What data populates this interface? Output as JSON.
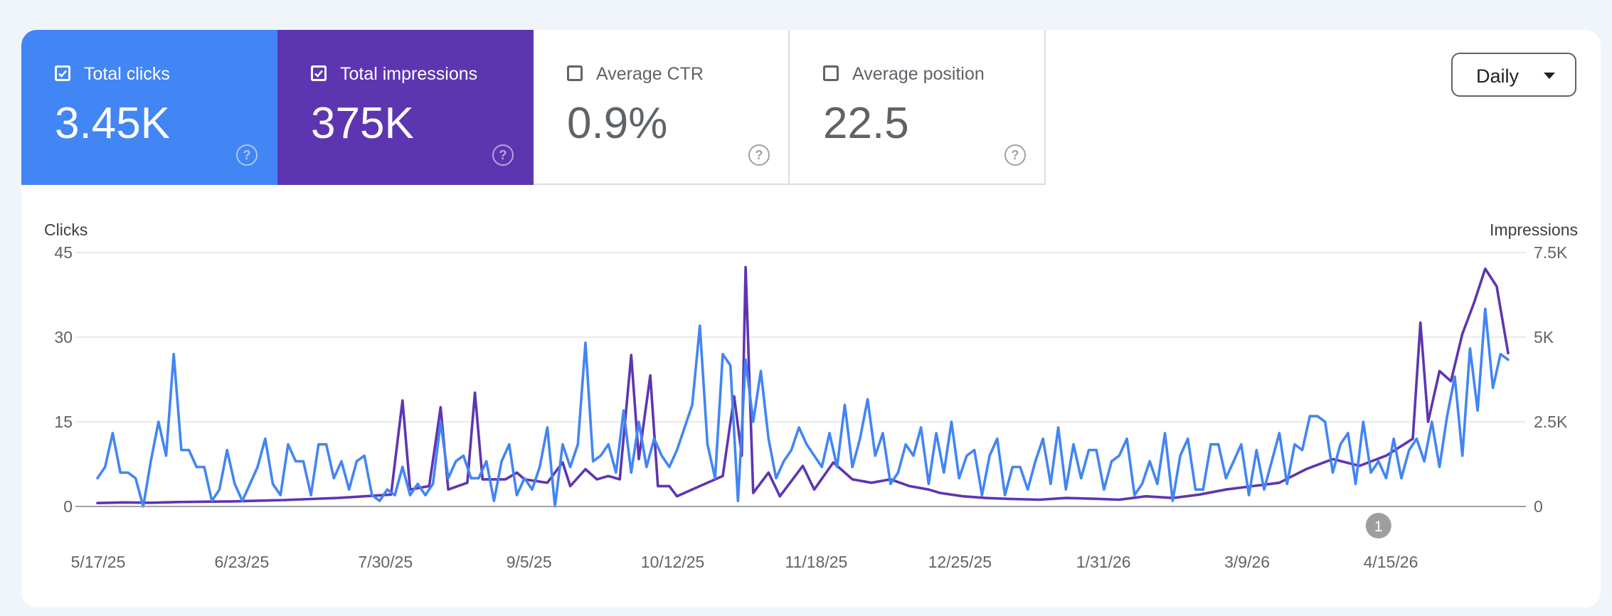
{
  "metrics": [
    {
      "label": "Total clicks",
      "value": "3.45K",
      "checked": true
    },
    {
      "label": "Total impressions",
      "value": "375K",
      "checked": true
    },
    {
      "label": "Average CTR",
      "value": "0.9%",
      "checked": false
    },
    {
      "label": "Average position",
      "value": "22.5",
      "checked": false
    }
  ],
  "granularity": {
    "label": "Daily"
  },
  "colors": {
    "clicks": "#4285f4",
    "impressions": "#5e35b1",
    "gridline": "#e8eaed",
    "baseline": "#9aa0a6"
  },
  "chart_data": {
    "type": "line",
    "xlabel": "",
    "left_axis": {
      "label": "Clicks",
      "ticks": [
        "0",
        "15",
        "30",
        "45"
      ],
      "range": [
        0,
        45
      ]
    },
    "right_axis": {
      "label": "Impressions",
      "ticks": [
        "0",
        "2.5K",
        "5K",
        "7.5K"
      ],
      "range": [
        0,
        7500
      ]
    },
    "x_tick_labels": [
      "5/17/25",
      "6/23/25",
      "7/30/25",
      "9/5/25",
      "10/12/25",
      "11/18/25",
      "12/25/25",
      "1/31/26",
      "3/9/26",
      "4/15/26"
    ],
    "x_range": [
      "2025-05-17",
      "2026-05-22"
    ],
    "annotation": {
      "label": "1",
      "date": "2026-04-18"
    },
    "grid": true,
    "series": [
      {
        "name": "Clicks",
        "axis": "left",
        "points": [
          [
            "2025-05-17",
            5
          ],
          [
            "2025-05-19",
            7
          ],
          [
            "2025-05-21",
            13
          ],
          [
            "2025-05-23",
            6
          ],
          [
            "2025-05-25",
            6
          ],
          [
            "2025-05-27",
            5
          ],
          [
            "2025-05-29",
            0
          ],
          [
            "2025-05-31",
            8
          ],
          [
            "2025-06-02",
            15
          ],
          [
            "2025-06-04",
            9
          ],
          [
            "2025-06-06",
            27
          ],
          [
            "2025-06-08",
            10
          ],
          [
            "2025-06-10",
            10
          ],
          [
            "2025-06-12",
            7
          ],
          [
            "2025-06-14",
            7
          ],
          [
            "2025-06-16",
            1
          ],
          [
            "2025-06-18",
            3
          ],
          [
            "2025-06-20",
            10
          ],
          [
            "2025-06-22",
            4
          ],
          [
            "2025-06-24",
            1
          ],
          [
            "2025-06-26",
            4
          ],
          [
            "2025-06-28",
            7
          ],
          [
            "2025-06-30",
            12
          ],
          [
            "2025-07-02",
            4
          ],
          [
            "2025-07-04",
            2
          ],
          [
            "2025-07-06",
            11
          ],
          [
            "2025-07-08",
            8
          ],
          [
            "2025-07-10",
            8
          ],
          [
            "2025-07-12",
            2
          ],
          [
            "2025-07-14",
            11
          ],
          [
            "2025-07-16",
            11
          ],
          [
            "2025-07-18",
            5
          ],
          [
            "2025-07-20",
            8
          ],
          [
            "2025-07-22",
            3
          ],
          [
            "2025-07-24",
            8
          ],
          [
            "2025-07-26",
            9
          ],
          [
            "2025-07-28",
            2
          ],
          [
            "2025-07-30",
            1
          ],
          [
            "2025-08-01",
            3
          ],
          [
            "2025-08-03",
            2
          ],
          [
            "2025-08-05",
            7
          ],
          [
            "2025-08-07",
            2
          ],
          [
            "2025-08-09",
            4
          ],
          [
            "2025-08-11",
            2
          ],
          [
            "2025-08-13",
            4
          ],
          [
            "2025-08-15",
            15
          ],
          [
            "2025-08-17",
            5
          ],
          [
            "2025-08-19",
            8
          ],
          [
            "2025-08-21",
            9
          ],
          [
            "2025-08-23",
            5
          ],
          [
            "2025-08-25",
            5
          ],
          [
            "2025-08-27",
            8
          ],
          [
            "2025-08-29",
            1
          ],
          [
            "2025-08-31",
            8
          ],
          [
            "2025-09-02",
            11
          ],
          [
            "2025-09-04",
            2
          ],
          [
            "2025-09-06",
            5
          ],
          [
            "2025-09-08",
            3
          ],
          [
            "2025-09-10",
            7
          ],
          [
            "2025-09-12",
            14
          ],
          [
            "2025-09-14",
            0
          ],
          [
            "2025-09-16",
            11
          ],
          [
            "2025-09-18",
            7
          ],
          [
            "2025-09-20",
            11
          ],
          [
            "2025-09-22",
            29
          ],
          [
            "2025-09-24",
            8
          ],
          [
            "2025-09-26",
            9
          ],
          [
            "2025-09-28",
            11
          ],
          [
            "2025-09-30",
            6
          ],
          [
            "2025-10-02",
            17
          ],
          [
            "2025-10-04",
            6
          ],
          [
            "2025-10-06",
            15
          ],
          [
            "2025-10-08",
            7
          ],
          [
            "2025-10-10",
            12
          ],
          [
            "2025-10-12",
            9
          ],
          [
            "2025-10-14",
            7
          ],
          [
            "2025-10-16",
            10
          ],
          [
            "2025-10-18",
            14
          ],
          [
            "2025-10-20",
            18
          ],
          [
            "2025-10-22",
            32
          ],
          [
            "2025-10-24",
            11
          ],
          [
            "2025-10-26",
            5
          ],
          [
            "2025-10-28",
            27
          ],
          [
            "2025-10-30",
            25
          ],
          [
            "2025-11-01",
            1
          ],
          [
            "2025-11-03",
            26
          ],
          [
            "2025-11-05",
            15
          ],
          [
            "2025-11-07",
            24
          ],
          [
            "2025-11-09",
            12
          ],
          [
            "2025-11-11",
            5
          ],
          [
            "2025-11-13",
            8
          ],
          [
            "2025-11-15",
            10
          ],
          [
            "2025-11-17",
            14
          ],
          [
            "2025-11-19",
            11
          ],
          [
            "2025-11-21",
            9
          ],
          [
            "2025-11-23",
            7
          ],
          [
            "2025-11-25",
            13
          ],
          [
            "2025-11-27",
            7
          ],
          [
            "2025-11-29",
            18
          ],
          [
            "2025-12-01",
            7
          ],
          [
            "2025-12-03",
            12
          ],
          [
            "2025-12-05",
            19
          ],
          [
            "2025-12-07",
            9
          ],
          [
            "2025-12-09",
            13
          ],
          [
            "2025-12-11",
            4
          ],
          [
            "2025-12-13",
            6
          ],
          [
            "2025-12-15",
            11
          ],
          [
            "2025-12-17",
            9
          ],
          [
            "2025-12-19",
            14
          ],
          [
            "2025-12-21",
            4
          ],
          [
            "2025-12-23",
            13
          ],
          [
            "2025-12-25",
            6
          ],
          [
            "2025-12-27",
            15
          ],
          [
            "2025-12-29",
            5
          ],
          [
            "2025-12-31",
            9
          ],
          [
            "2026-01-02",
            10
          ],
          [
            "2026-01-04",
            2
          ],
          [
            "2026-01-06",
            9
          ],
          [
            "2026-01-08",
            12
          ],
          [
            "2026-01-10",
            2
          ],
          [
            "2026-01-12",
            7
          ],
          [
            "2026-01-14",
            7
          ],
          [
            "2026-01-16",
            3
          ],
          [
            "2026-01-18",
            8
          ],
          [
            "2026-01-20",
            12
          ],
          [
            "2026-01-22",
            4
          ],
          [
            "2026-01-24",
            14
          ],
          [
            "2026-01-26",
            3
          ],
          [
            "2026-01-28",
            11
          ],
          [
            "2026-01-30",
            5
          ],
          [
            "2026-02-01",
            10
          ],
          [
            "2026-02-03",
            10
          ],
          [
            "2026-02-05",
            3
          ],
          [
            "2026-02-07",
            8
          ],
          [
            "2026-02-09",
            9
          ],
          [
            "2026-02-11",
            12
          ],
          [
            "2026-02-13",
            2
          ],
          [
            "2026-02-15",
            4
          ],
          [
            "2026-02-17",
            8
          ],
          [
            "2026-02-19",
            4
          ],
          [
            "2026-02-21",
            13
          ],
          [
            "2026-02-23",
            1
          ],
          [
            "2026-02-25",
            9
          ],
          [
            "2026-02-27",
            12
          ],
          [
            "2026-03-01",
            3
          ],
          [
            "2026-03-03",
            3
          ],
          [
            "2026-03-05",
            11
          ],
          [
            "2026-03-07",
            11
          ],
          [
            "2026-03-09",
            5
          ],
          [
            "2026-03-11",
            8
          ],
          [
            "2026-03-13",
            11
          ],
          [
            "2026-03-15",
            2
          ],
          [
            "2026-03-17",
            10
          ],
          [
            "2026-03-19",
            3
          ],
          [
            "2026-03-21",
            8
          ],
          [
            "2026-03-23",
            13
          ],
          [
            "2026-03-25",
            4
          ],
          [
            "2026-03-27",
            11
          ],
          [
            "2026-03-29",
            10
          ],
          [
            "2026-03-31",
            16
          ],
          [
            "2026-04-02",
            16
          ],
          [
            "2026-04-04",
            15
          ],
          [
            "2026-04-06",
            6
          ],
          [
            "2026-04-08",
            11
          ],
          [
            "2026-04-10",
            13
          ],
          [
            "2026-04-12",
            4
          ],
          [
            "2026-04-14",
            15
          ],
          [
            "2026-04-16",
            6
          ],
          [
            "2026-04-18",
            8
          ],
          [
            "2026-04-20",
            5
          ],
          [
            "2026-04-22",
            12
          ],
          [
            "2026-04-24",
            5
          ],
          [
            "2026-04-26",
            10
          ],
          [
            "2026-04-28",
            12
          ],
          [
            "2026-04-30",
            8
          ],
          [
            "2026-05-02",
            15
          ],
          [
            "2026-05-04",
            7
          ],
          [
            "2026-05-06",
            16
          ],
          [
            "2026-05-08",
            23
          ],
          [
            "2026-05-10",
            9
          ],
          [
            "2026-05-12",
            28
          ],
          [
            "2026-05-14",
            17
          ],
          [
            "2026-05-16",
            35
          ],
          [
            "2026-05-18",
            21
          ],
          [
            "2026-05-20",
            27
          ],
          [
            "2026-05-22",
            26
          ]
        ]
      },
      {
        "name": "Impressions",
        "axis": "right",
        "points": [
          [
            "2025-05-17",
            100
          ],
          [
            "2025-05-24",
            120
          ],
          [
            "2025-05-31",
            110
          ],
          [
            "2025-06-07",
            130
          ],
          [
            "2025-06-14",
            140
          ],
          [
            "2025-06-21",
            150
          ],
          [
            "2025-06-28",
            170
          ],
          [
            "2025-07-05",
            190
          ],
          [
            "2025-07-12",
            220
          ],
          [
            "2025-07-19",
            250
          ],
          [
            "2025-07-26",
            300
          ],
          [
            "2025-08-02",
            350
          ],
          [
            "2025-08-05",
            3130
          ],
          [
            "2025-08-07",
            500
          ],
          [
            "2025-08-12",
            600
          ],
          [
            "2025-08-15",
            2930
          ],
          [
            "2025-08-17",
            500
          ],
          [
            "2025-08-22",
            700
          ],
          [
            "2025-08-24",
            3360
          ],
          [
            "2025-08-26",
            800
          ],
          [
            "2025-09-01",
            800
          ],
          [
            "2025-09-04",
            1000
          ],
          [
            "2025-09-06",
            800
          ],
          [
            "2025-09-12",
            700
          ],
          [
            "2025-09-16",
            1300
          ],
          [
            "2025-09-18",
            600
          ],
          [
            "2025-09-22",
            1100
          ],
          [
            "2025-09-25",
            800
          ],
          [
            "2025-09-28",
            900
          ],
          [
            "2025-10-01",
            800
          ],
          [
            "2025-10-04",
            4470
          ],
          [
            "2025-10-06",
            1400
          ],
          [
            "2025-10-09",
            3870
          ],
          [
            "2025-10-11",
            600
          ],
          [
            "2025-10-14",
            600
          ],
          [
            "2025-10-16",
            300
          ],
          [
            "2025-10-22",
            600
          ],
          [
            "2025-10-28",
            900
          ],
          [
            "2025-10-31",
            3250
          ],
          [
            "2025-11-02",
            1500
          ],
          [
            "2025-11-03",
            7070
          ],
          [
            "2025-11-05",
            400
          ],
          [
            "2025-11-09",
            1000
          ],
          [
            "2025-11-12",
            300
          ],
          [
            "2025-11-18",
            1200
          ],
          [
            "2025-11-21",
            500
          ],
          [
            "2025-11-26",
            1300
          ],
          [
            "2025-12-01",
            800
          ],
          [
            "2025-12-06",
            700
          ],
          [
            "2025-12-11",
            800
          ],
          [
            "2025-12-16",
            600
          ],
          [
            "2025-12-21",
            500
          ],
          [
            "2025-12-24",
            400
          ],
          [
            "2025-12-30",
            300
          ],
          [
            "2026-01-05",
            250
          ],
          [
            "2026-01-12",
            220
          ],
          [
            "2026-01-19",
            200
          ],
          [
            "2026-01-26",
            250
          ],
          [
            "2026-02-02",
            230
          ],
          [
            "2026-02-09",
            200
          ],
          [
            "2026-02-16",
            300
          ],
          [
            "2026-02-23",
            250
          ],
          [
            "2026-03-02",
            350
          ],
          [
            "2026-03-09",
            500
          ],
          [
            "2026-03-16",
            600
          ],
          [
            "2026-03-23",
            700
          ],
          [
            "2026-03-30",
            1100
          ],
          [
            "2026-04-06",
            1400
          ],
          [
            "2026-04-13",
            1200
          ],
          [
            "2026-04-20",
            1500
          ],
          [
            "2026-04-27",
            2000
          ],
          [
            "2026-04-29",
            5430
          ],
          [
            "2026-05-01",
            2500
          ],
          [
            "2026-05-04",
            4000
          ],
          [
            "2026-05-07",
            3700
          ],
          [
            "2026-05-10",
            5100
          ],
          [
            "2026-05-13",
            6000
          ],
          [
            "2026-05-16",
            7020
          ],
          [
            "2026-05-19",
            6500
          ],
          [
            "2026-05-22",
            4530
          ]
        ]
      }
    ]
  }
}
